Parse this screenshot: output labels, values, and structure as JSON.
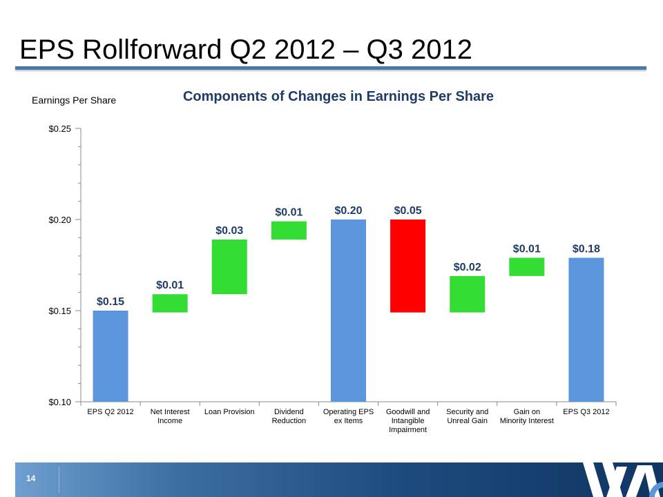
{
  "slide": {
    "title": "EPS Rollforward Q2 2012 – Q3 2012",
    "page_number": "14"
  },
  "colors": {
    "total": "#5b96dd",
    "increase": "#33dd33",
    "decrease": "#ff0000",
    "label": "#1f3b67",
    "footer": "#1d4a7e"
  },
  "chart_data": {
    "type": "bar",
    "subtype": "waterfall",
    "title": "Components of Changes in Earnings Per Share",
    "ylabel": "Earnings Per Share",
    "xlabel": "",
    "ylim": [
      0.1,
      0.25
    ],
    "yticks": [
      "$0.10",
      "$0.15",
      "$0.20",
      "$0.25"
    ],
    "ytick_values": [
      0.1,
      0.15,
      0.2,
      0.25
    ],
    "grid": false,
    "legend": "none",
    "categories": [
      [
        "EPS Q2 2012"
      ],
      [
        "Net Interest",
        "Income"
      ],
      [
        "Loan Provision"
      ],
      [
        "Dividend",
        "Reduction"
      ],
      [
        "Operating EPS",
        "ex Items"
      ],
      [
        "Goodwill and",
        "Intangible",
        "Impairment"
      ],
      [
        "Security and",
        "Unreal Gain"
      ],
      [
        "Gain on",
        "Minority Interest"
      ],
      [
        "EPS Q3 2012"
      ]
    ],
    "bars": [
      {
        "kind": "total",
        "start": 0.1,
        "end": 0.15,
        "label": "$0.15"
      },
      {
        "kind": "increase",
        "start": 0.149,
        "end": 0.159,
        "label": "$0.01"
      },
      {
        "kind": "increase",
        "start": 0.159,
        "end": 0.189,
        "label": "$0.03"
      },
      {
        "kind": "increase",
        "start": 0.189,
        "end": 0.199,
        "label": "$0.01"
      },
      {
        "kind": "total",
        "start": 0.1,
        "end": 0.2,
        "label": "$0.20"
      },
      {
        "kind": "decrease",
        "start": 0.2,
        "end": 0.149,
        "label": "$0.05"
      },
      {
        "kind": "increase",
        "start": 0.149,
        "end": 0.169,
        "label": "$0.02"
      },
      {
        "kind": "increase",
        "start": 0.169,
        "end": 0.179,
        "label": "$0.01"
      },
      {
        "kind": "total",
        "start": 0.1,
        "end": 0.179,
        "label": "$0.18"
      }
    ]
  }
}
